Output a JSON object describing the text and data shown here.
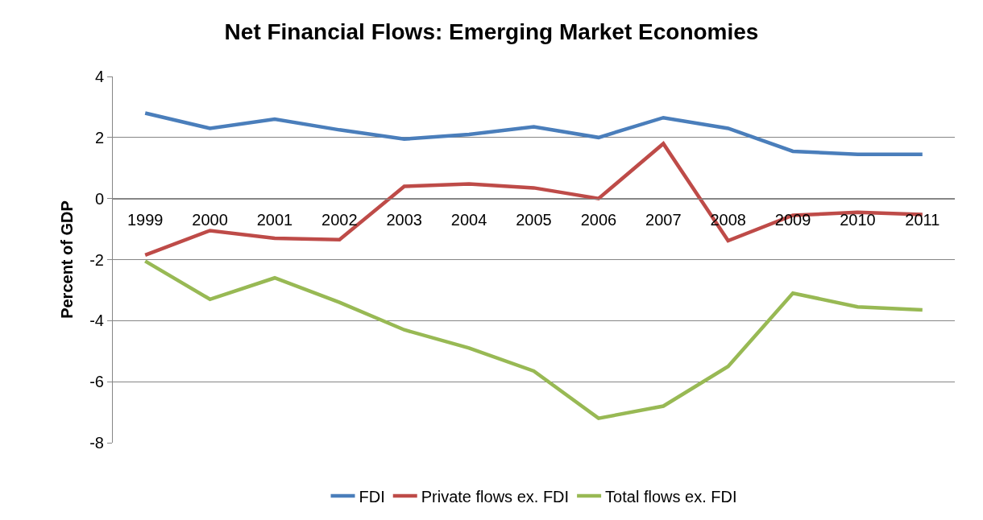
{
  "chart_data": {
    "type": "line",
    "title": "Net Financial Flows: Emerging Market Economies",
    "ylabel": "Percent of GDP",
    "categories": [
      "1999",
      "2000",
      "2001",
      "2002",
      "2003",
      "2004",
      "2005",
      "2006",
      "2007",
      "2008",
      "2009",
      "2010",
      "2011"
    ],
    "series": [
      {
        "name": "FDI",
        "color": "#4a7ebb",
        "values": [
          2.8,
          2.3,
          2.6,
          2.25,
          1.95,
          2.1,
          2.35,
          2.0,
          2.65,
          2.3,
          1.55,
          1.45,
          1.45
        ]
      },
      {
        "name": "Private flows ex. FDI",
        "color": "#be4b48",
        "values": [
          -1.85,
          -1.05,
          -1.3,
          -1.35,
          0.4,
          0.48,
          0.35,
          0.0,
          1.8,
          -1.38,
          -0.55,
          -0.45,
          -0.52
        ]
      },
      {
        "name": "Total flows ex. FDI",
        "color": "#98b954",
        "values": [
          -2.05,
          -3.3,
          -2.6,
          -3.4,
          -4.3,
          -4.9,
          -5.65,
          -7.2,
          -6.8,
          -5.5,
          -3.1,
          -3.55,
          -3.65
        ]
      }
    ],
    "ylim": [
      -8,
      4
    ],
    "yticks": [
      -8,
      -6,
      -4,
      -2,
      0,
      2,
      4
    ],
    "grid": "y",
    "legend": "bottom",
    "marker": "none",
    "line_style": "solid"
  }
}
